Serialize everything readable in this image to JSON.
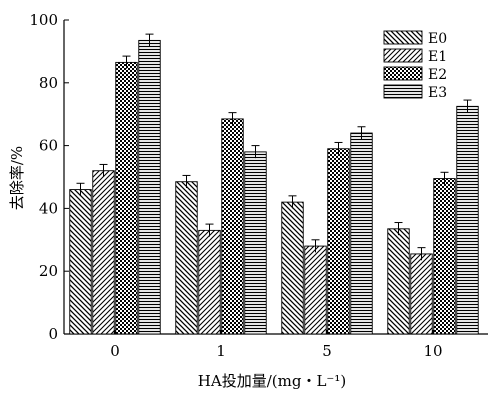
{
  "chart_data": {
    "type": "bar",
    "xlabel": "HA投加量/(mg・L⁻¹)",
    "ylabel": "去除率/%",
    "categories": [
      "0",
      "1",
      "5",
      "10"
    ],
    "ylim": [
      0,
      100
    ],
    "yticks": [
      0,
      20,
      40,
      60,
      80,
      100
    ],
    "legend_position": "top-right",
    "grid": false,
    "series": [
      {
        "name": "E0",
        "values": [
          46,
          48.5,
          42,
          33.5
        ],
        "errors": [
          2,
          2,
          2,
          2
        ],
        "pattern": "diag-down"
      },
      {
        "name": "E1",
        "values": [
          52,
          33,
          28,
          25.5
        ],
        "errors": [
          2,
          2,
          2,
          2
        ],
        "pattern": "diag-up"
      },
      {
        "name": "E2",
        "values": [
          86.5,
          68.5,
          59,
          49.5
        ],
        "errors": [
          2,
          2,
          2,
          2
        ],
        "pattern": "checker"
      },
      {
        "name": "E3",
        "values": [
          93.5,
          58,
          64,
          72.5
        ],
        "errors": [
          2,
          2,
          2,
          2
        ],
        "pattern": "horizontal"
      }
    ]
  }
}
